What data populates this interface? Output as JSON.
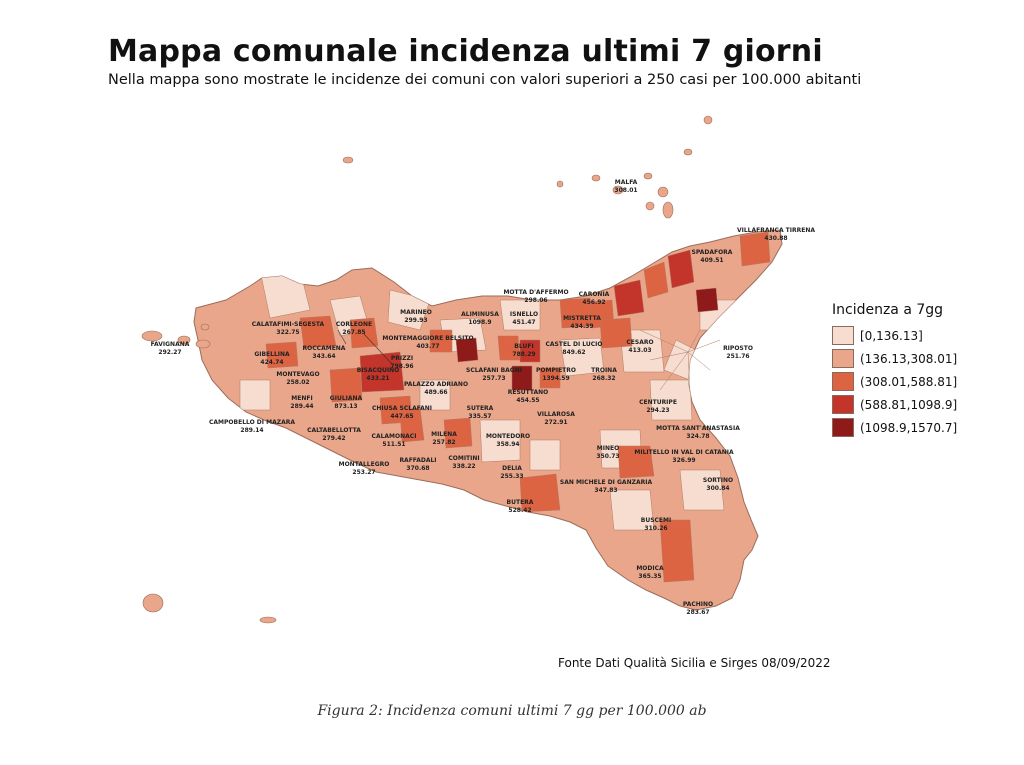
{
  "map": {
    "title": "Mappa comunale incidenza ultimi 7 giorni",
    "subtitle": "Nella mappa sono mostrate le incidenze dei comuni con valori superiori a 250 casi per 100.000 abitanti",
    "region": "Sicilia",
    "source_note": "Fonte Dati Qualità Sicilia e Sirges 08/09/2022",
    "caption": "Figura 2: Incidenza comuni ultimi 7 gg per 100.000 ab"
  },
  "legend": {
    "title": "Incidenza a 7gg",
    "classes": [
      {
        "label": "[0,136.13]",
        "color": "#f6ddd0"
      },
      {
        "label": "(136.13,308.01]",
        "color": "#e9a68a"
      },
      {
        "label": "(308.01,588.81]",
        "color": "#dc6443"
      },
      {
        "label": "(588.81,1098.9]",
        "color": "#c3352a"
      },
      {
        "label": "(1098.9,1570.7]",
        "color": "#8e1a1a"
      }
    ]
  },
  "towns": [
    {
      "name": "MALFA",
      "value": "308.01"
    },
    {
      "name": "VILLAFRANCA TIRRENA",
      "value": "430.88"
    },
    {
      "name": "SPADAFORA",
      "value": "409.51"
    },
    {
      "name": "MOTTA D'AFFERMO",
      "value": "298.06"
    },
    {
      "name": "CARONIA",
      "value": "456.92"
    },
    {
      "name": "MISTRETTA",
      "value": "434.39"
    },
    {
      "name": "CESARO",
      "value": "413.03"
    },
    {
      "name": "RIPOSTO",
      "value": "251.76"
    },
    {
      "name": "ALIMINUSA",
      "value": "1098.9"
    },
    {
      "name": "ISNELLO",
      "value": "451.47"
    },
    {
      "name": "CASTEL DI LUCIO",
      "value": "849.62"
    },
    {
      "name": "BLUFI",
      "value": "788.29"
    },
    {
      "name": "TROINA",
      "value": "268.32"
    },
    {
      "name": "MARINEO",
      "value": "299.93"
    },
    {
      "name": "CALATAFIMI-SEGESTA",
      "value": "322.75"
    },
    {
      "name": "CORLEONE",
      "value": "267.85"
    },
    {
      "name": "MONTEMAGGIORE BELSITO",
      "value": "403.77"
    },
    {
      "name": "FAVIGNANA",
      "value": "292.27"
    },
    {
      "name": "ROCCAMENA",
      "value": "343.64"
    },
    {
      "name": "GIBELLINA",
      "value": "424.74"
    },
    {
      "name": "PRIZZI",
      "value": "798.96"
    },
    {
      "name": "SCLAFANI BAGNI",
      "value": "257.73"
    },
    {
      "name": "POMPIETRO",
      "value": "1394.59"
    },
    {
      "name": "BISACQUINO",
      "value": "433.21"
    },
    {
      "name": "MONTEVAGO",
      "value": "258.02"
    },
    {
      "name": "PALAZZO ADRIANO",
      "value": "489.66"
    },
    {
      "name": "RESUTTANO",
      "value": "454.55"
    },
    {
      "name": "CENTURIPE",
      "value": "294.23"
    },
    {
      "name": "MENFI",
      "value": "289.44"
    },
    {
      "name": "GIULIANA",
      "value": "873.13"
    },
    {
      "name": "CHIUSA SCLAFANI",
      "value": "447.65"
    },
    {
      "name": "SUTERA",
      "value": "335.57"
    },
    {
      "name": "VILLAROSA",
      "value": "272.91"
    },
    {
      "name": "CAMPOBELLO DI MAZARA",
      "value": "289.14"
    },
    {
      "name": "CALTABELLOTTA",
      "value": "279.42"
    },
    {
      "name": "MOTTA SANT'ANASTASIA",
      "value": "324.78"
    },
    {
      "name": "CALAMONACI",
      "value": "511.51"
    },
    {
      "name": "MILENA",
      "value": "257.82"
    },
    {
      "name": "MONTEDORO",
      "value": "358.94"
    },
    {
      "name": "MINEO",
      "value": "350.73"
    },
    {
      "name": "MILITELLO IN VAL DI CATANIA",
      "value": "326.99"
    },
    {
      "name": "COMITINI",
      "value": "338.22"
    },
    {
      "name": "RAFFADALI",
      "value": "370.68"
    },
    {
      "name": "MONTALLEGRO",
      "value": "253.27"
    },
    {
      "name": "DELIA",
      "value": "255.33"
    },
    {
      "name": "SAN MICHELE DI GANZARIA",
      "value": "347.83"
    },
    {
      "name": "SORTINO",
      "value": "300.84"
    },
    {
      "name": "BUTERA",
      "value": "528.42"
    },
    {
      "name": "BUSCEMI",
      "value": "310.26"
    },
    {
      "name": "MODICA",
      "value": "365.35"
    },
    {
      "name": "PACHINO",
      "value": "283.67"
    }
  ]
}
